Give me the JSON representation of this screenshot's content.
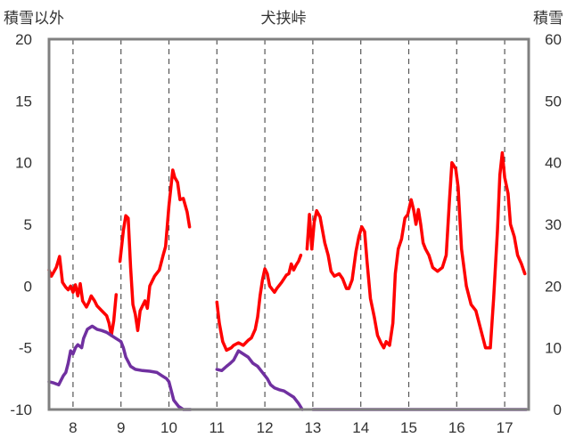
{
  "chart_data": {
    "type": "line",
    "title": "犬挟峠",
    "left_axis_label": "積雪以外",
    "right_axis_label": "積雪",
    "y_left": {
      "min": -10,
      "max": 20,
      "ticks": [
        20,
        15,
        10,
        5,
        0,
        -5,
        -10
      ]
    },
    "y_right": {
      "min": 0,
      "max": 60,
      "ticks": [
        60,
        50,
        40,
        30,
        20,
        10,
        0
      ]
    },
    "x": {
      "min": 7.5,
      "max": 17.5,
      "ticks": [
        8,
        9,
        10,
        11,
        12,
        13,
        14,
        15,
        16,
        17
      ]
    },
    "grid": {
      "vertical_dashed": true,
      "horizontal": false
    },
    "series": [
      {
        "color": "#ff0000",
        "axis": "left",
        "segments": [
          [
            [
              7.5,
              1.3
            ],
            [
              7.55,
              0.8
            ],
            [
              7.65,
              1.5
            ],
            [
              7.72,
              2.4
            ],
            [
              7.78,
              0.3
            ],
            [
              7.85,
              -0.1
            ],
            [
              7.9,
              -0.3
            ],
            [
              7.95,
              0.0
            ],
            [
              8.0,
              -0.5
            ],
            [
              8.05,
              0.1
            ],
            [
              8.1,
              -0.8
            ],
            [
              8.15,
              0.2
            ],
            [
              8.2,
              -1.2
            ],
            [
              8.28,
              -1.7
            ],
            [
              8.33,
              -1.3
            ],
            [
              8.38,
              -0.8
            ],
            [
              8.45,
              -1.2
            ],
            [
              8.5,
              -1.6
            ],
            [
              8.6,
              -2.0
            ],
            [
              8.7,
              -2.4
            ],
            [
              8.75,
              -3.0
            ],
            [
              8.8,
              -4.0
            ],
            [
              8.85,
              -2.8
            ],
            [
              8.9,
              -0.7
            ]
          ],
          [
            [
              8.98,
              2.0
            ],
            [
              9.05,
              4.5
            ],
            [
              9.1,
              5.7
            ],
            [
              9.15,
              5.5
            ],
            [
              9.2,
              1.5
            ],
            [
              9.25,
              -1.5
            ],
            [
              9.3,
              -2.3
            ],
            [
              9.35,
              -3.6
            ],
            [
              9.4,
              -2.0
            ],
            [
              9.45,
              -1.6
            ],
            [
              9.5,
              -1.2
            ],
            [
              9.55,
              -1.8
            ],
            [
              9.6,
              0.0
            ],
            [
              9.7,
              0.8
            ],
            [
              9.8,
              1.3
            ],
            [
              9.88,
              2.5
            ],
            [
              9.93,
              3.2
            ],
            [
              10.0,
              6.5
            ],
            [
              10.08,
              9.4
            ],
            [
              10.12,
              8.8
            ],
            [
              10.18,
              8.4
            ],
            [
              10.23,
              7.0
            ],
            [
              10.3,
              7.1
            ],
            [
              10.38,
              6.0
            ],
            [
              10.43,
              4.8
            ]
          ],
          [
            [
              11.0,
              -1.3
            ],
            [
              11.05,
              -3.0
            ],
            [
              11.12,
              -4.5
            ],
            [
              11.2,
              -5.2
            ],
            [
              11.3,
              -5.0
            ],
            [
              11.35,
              -4.8
            ],
            [
              11.45,
              -4.6
            ],
            [
              11.55,
              -4.8
            ],
            [
              11.65,
              -4.4
            ],
            [
              11.72,
              -4.2
            ],
            [
              11.8,
              -3.5
            ],
            [
              11.85,
              -2.5
            ],
            [
              11.9,
              -0.8
            ],
            [
              11.95,
              0.5
            ],
            [
              12.0,
              1.4
            ],
            [
              12.05,
              1.0
            ],
            [
              12.1,
              0.0
            ],
            [
              12.2,
              -0.5
            ],
            [
              12.25,
              -0.2
            ],
            [
              12.35,
              0.3
            ],
            [
              12.45,
              0.9
            ],
            [
              12.5,
              1.0
            ],
            [
              12.55,
              1.8
            ],
            [
              12.6,
              1.3
            ],
            [
              12.65,
              1.7
            ],
            [
              12.7,
              2.0
            ],
            [
              12.75,
              2.5
            ]
          ],
          [
            [
              12.88,
              3.0
            ],
            [
              12.93,
              5.8
            ],
            [
              12.98,
              3.0
            ],
            [
              13.03,
              5.2
            ],
            [
              13.08,
              6.1
            ],
            [
              13.15,
              5.6
            ],
            [
              13.25,
              3.5
            ],
            [
              13.32,
              2.5
            ],
            [
              13.38,
              1.2
            ],
            [
              13.45,
              0.8
            ],
            [
              13.55,
              1.0
            ],
            [
              13.62,
              0.6
            ],
            [
              13.7,
              -0.2
            ],
            [
              13.75,
              -0.2
            ],
            [
              13.82,
              0.5
            ],
            [
              13.9,
              2.8
            ],
            [
              13.96,
              4.0
            ],
            [
              14.02,
              4.8
            ],
            [
              14.08,
              4.4
            ],
            [
              14.13,
              2.0
            ],
            [
              14.2,
              -1.0
            ],
            [
              14.28,
              -2.5
            ],
            [
              14.35,
              -4.0
            ],
            [
              14.42,
              -4.6
            ],
            [
              14.48,
              -5.0
            ],
            [
              14.53,
              -4.5
            ],
            [
              14.6,
              -4.8
            ],
            [
              14.67,
              -3.0
            ],
            [
              14.72,
              1.0
            ],
            [
              14.78,
              3.0
            ],
            [
              14.85,
              3.8
            ],
            [
              14.92,
              5.5
            ],
            [
              14.98,
              5.8
            ],
            [
              15.05,
              7.0
            ],
            [
              15.1,
              6.2
            ],
            [
              15.15,
              5.0
            ],
            [
              15.2,
              6.2
            ],
            [
              15.25,
              5.0
            ],
            [
              15.3,
              3.5
            ],
            [
              15.35,
              3.0
            ],
            [
              15.42,
              2.5
            ],
            [
              15.5,
              1.5
            ],
            [
              15.6,
              1.2
            ],
            [
              15.7,
              1.5
            ],
            [
              15.78,
              2.5
            ],
            [
              15.85,
              7.0
            ],
            [
              15.9,
              10.0
            ],
            [
              15.98,
              9.5
            ],
            [
              16.03,
              8.0
            ],
            [
              16.1,
              3.0
            ],
            [
              16.2,
              0.0
            ],
            [
              16.3,
              -1.5
            ],
            [
              16.4,
              -2.0
            ],
            [
              16.5,
              -3.5
            ],
            [
              16.6,
              -5.0
            ],
            [
              16.7,
              -5.0
            ],
            [
              16.77,
              -1.0
            ],
            [
              16.85,
              4.5
            ],
            [
              16.9,
              9.0
            ],
            [
              16.95,
              10.8
            ],
            [
              17.0,
              8.8
            ],
            [
              17.07,
              7.5
            ],
            [
              17.12,
              5.0
            ],
            [
              17.2,
              4.0
            ],
            [
              17.27,
              2.5
            ],
            [
              17.35,
              1.8
            ],
            [
              17.42,
              1.0
            ]
          ]
        ]
      },
      {
        "color": "#7030a0",
        "axis": "right",
        "segments": [
          [
            [
              7.5,
              4.5
            ],
            [
              7.6,
              4.3
            ],
            [
              7.7,
              4.0
            ],
            [
              7.8,
              5.5
            ],
            [
              7.85,
              6.0
            ],
            [
              7.9,
              7.5
            ],
            [
              7.95,
              9.5
            ],
            [
              8.0,
              9.0
            ],
            [
              8.05,
              10.0
            ],
            [
              8.1,
              10.5
            ],
            [
              8.18,
              10.0
            ],
            [
              8.22,
              11.5
            ],
            [
              8.3,
              13.0
            ],
            [
              8.4,
              13.5
            ],
            [
              8.5,
              13.0
            ],
            [
              8.6,
              12.8
            ],
            [
              8.7,
              12.5
            ],
            [
              8.8,
              12.0
            ],
            [
              8.9,
              11.5
            ],
            [
              9.0,
              11.0
            ],
            [
              9.05,
              10.0
            ],
            [
              9.1,
              8.5
            ],
            [
              9.2,
              7.0
            ],
            [
              9.3,
              6.5
            ],
            [
              9.45,
              6.3
            ],
            [
              9.6,
              6.2
            ],
            [
              9.75,
              6.0
            ],
            [
              9.85,
              5.5
            ],
            [
              9.95,
              5.0
            ],
            [
              10.0,
              4.5
            ],
            [
              10.05,
              3.0
            ],
            [
              10.1,
              1.5
            ],
            [
              10.2,
              0.5
            ],
            [
              10.3,
              0.0
            ],
            [
              10.45,
              0.0
            ]
          ],
          [
            [
              11.0,
              6.5
            ],
            [
              11.1,
              6.3
            ],
            [
              11.2,
              7.0
            ],
            [
              11.28,
              7.5
            ],
            [
              11.35,
              8.0
            ],
            [
              11.45,
              9.5
            ],
            [
              11.55,
              9.0
            ],
            [
              11.65,
              8.5
            ],
            [
              11.75,
              7.5
            ],
            [
              11.85,
              7.0
            ],
            [
              11.95,
              6.0
            ],
            [
              12.05,
              5.0
            ],
            [
              12.12,
              4.0
            ],
            [
              12.2,
              3.5
            ],
            [
              12.3,
              3.2
            ],
            [
              12.4,
              3.0
            ],
            [
              12.5,
              2.5
            ],
            [
              12.6,
              2.0
            ],
            [
              12.7,
              1.0
            ],
            [
              12.78,
              0.0
            ]
          ],
          [
            [
              13.0,
              0.0
            ],
            [
              13.5,
              0.0
            ],
            [
              14.0,
              0.0
            ],
            [
              15.0,
              0.0
            ],
            [
              16.0,
              0.0
            ],
            [
              17.0,
              0.0
            ],
            [
              17.45,
              0.0
            ]
          ]
        ]
      }
    ]
  }
}
